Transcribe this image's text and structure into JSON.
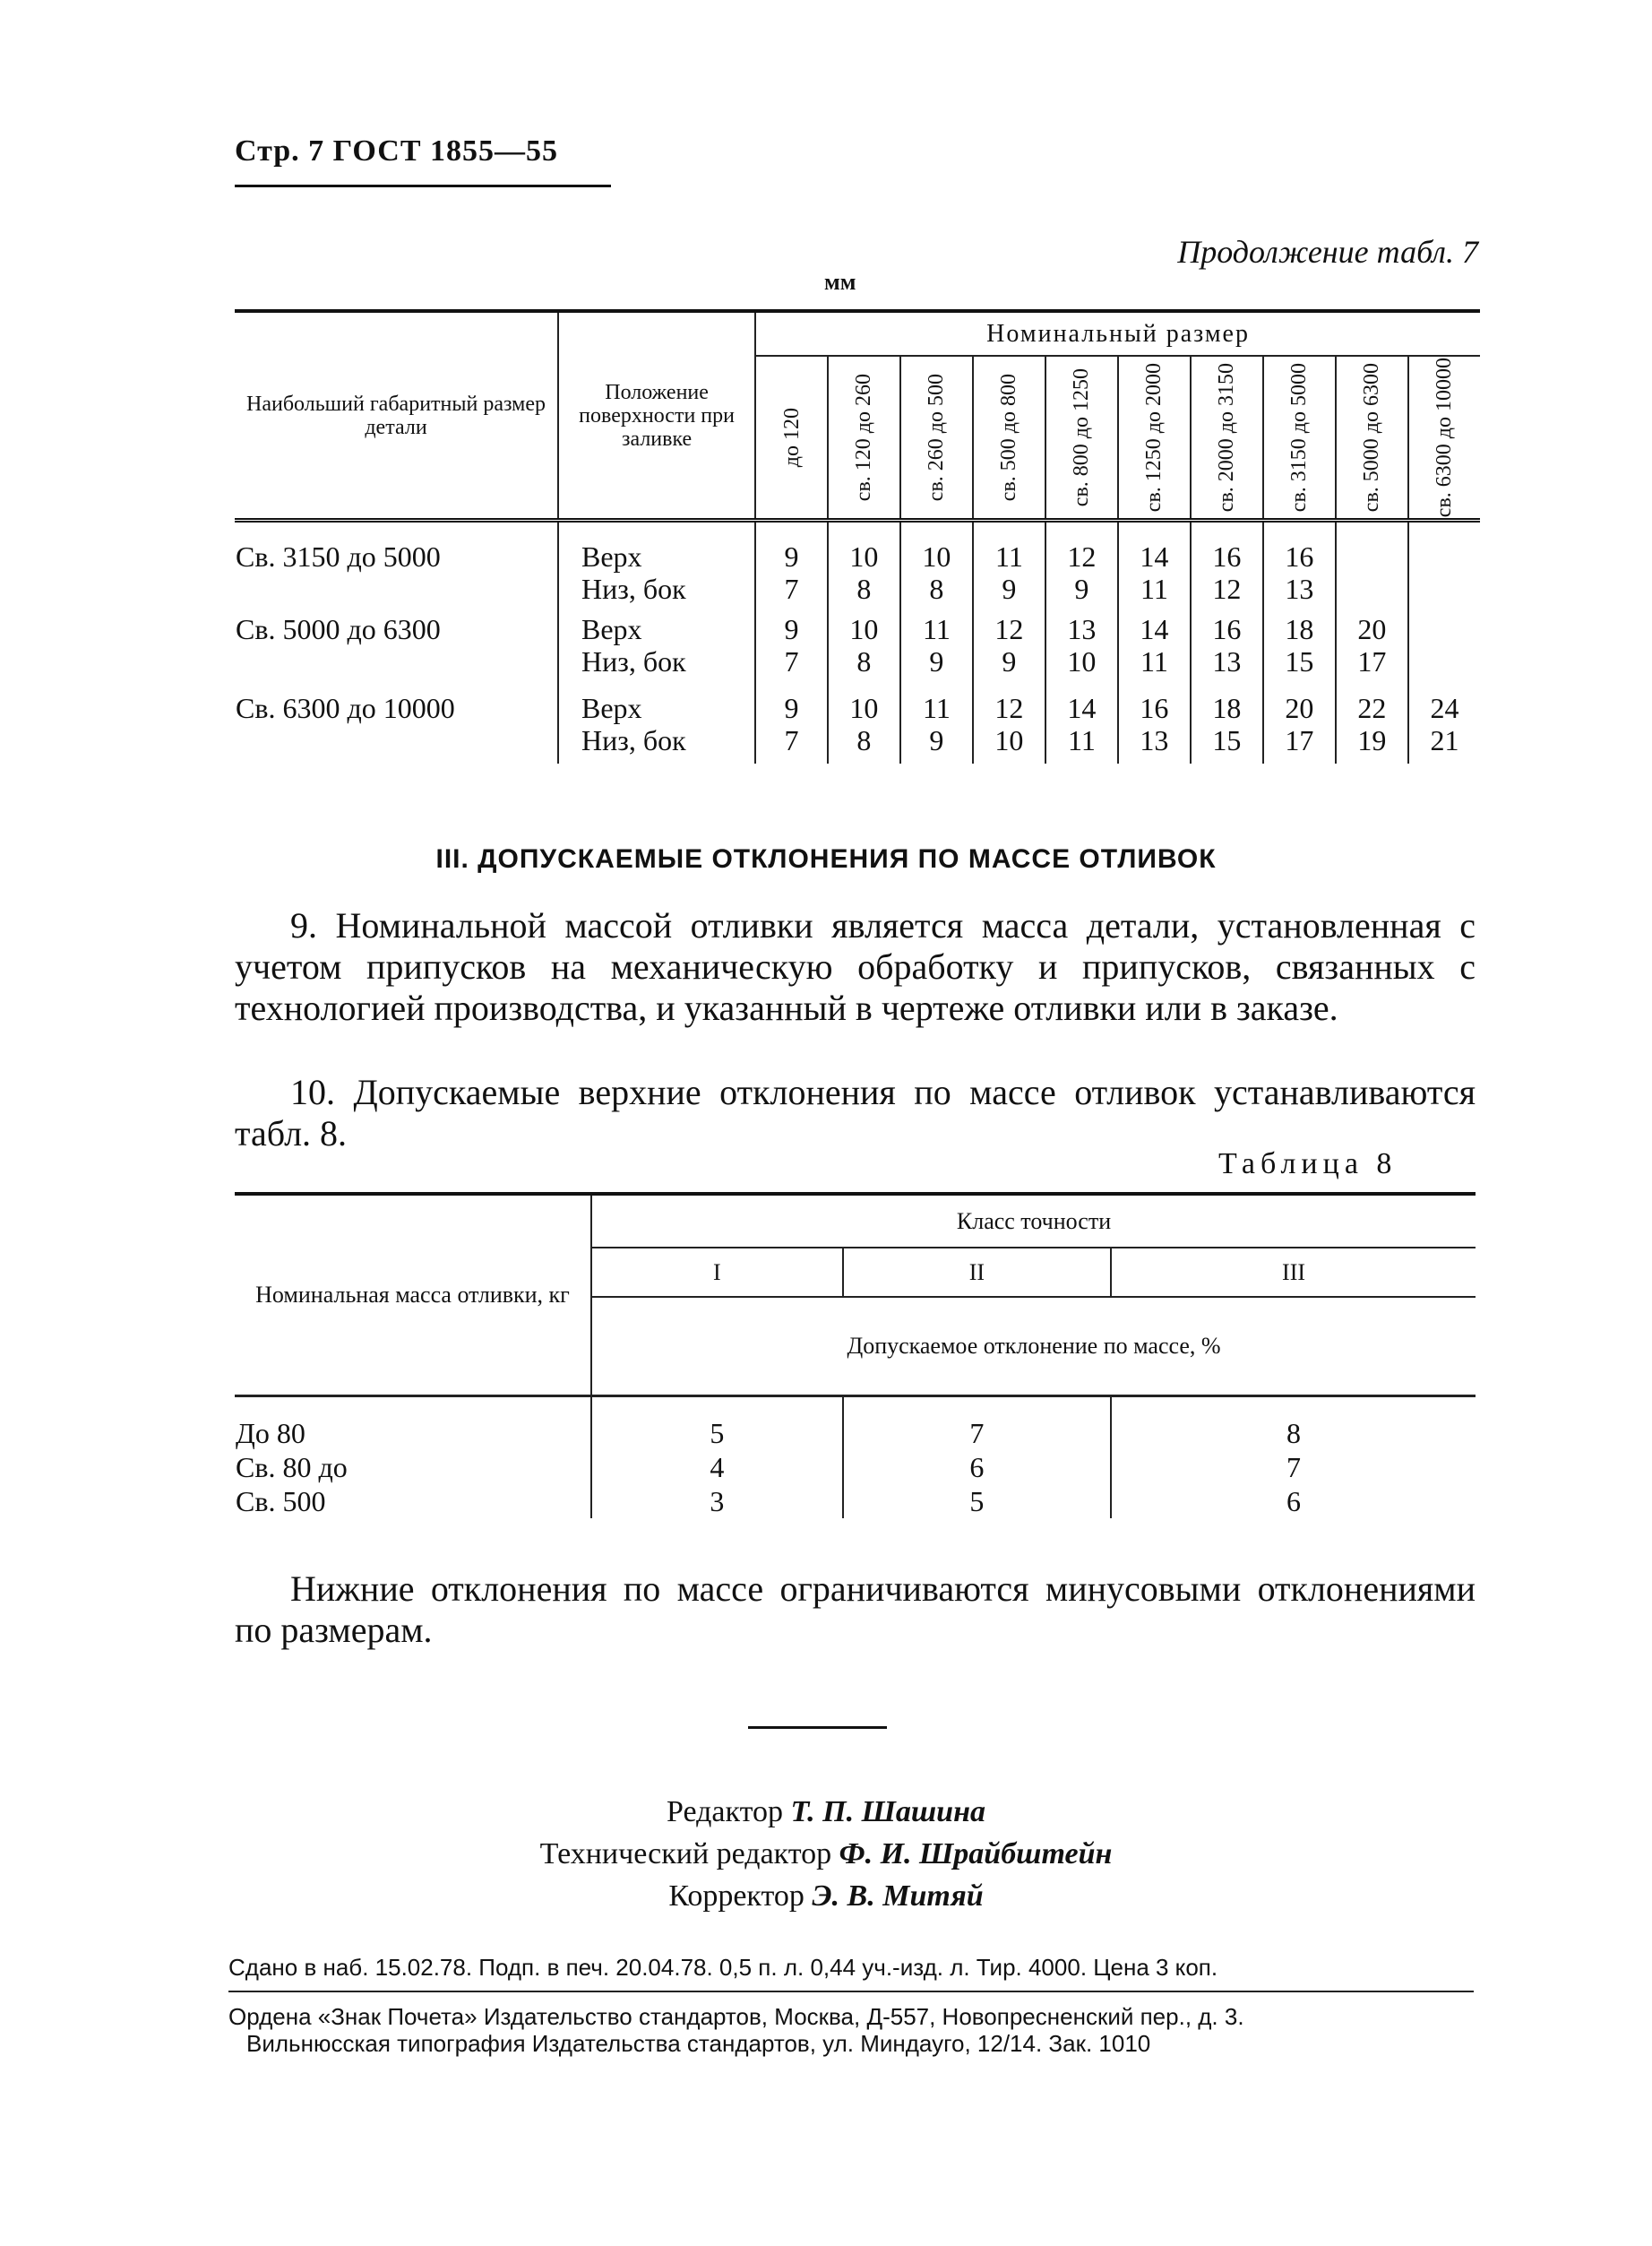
{
  "header": {
    "page_ref": "Стр. 7 ГОСТ 1855—55"
  },
  "continuation": "Продолжение табл. 7",
  "unit": "мм",
  "table7": {
    "col1_header": "Наибольший габаритный размер детали",
    "col2_header": "Положение поверхности при заливке",
    "group_header": "Номинальный размер",
    "size_columns": [
      "до 120",
      "св. 120 до 260",
      "св. 260 до 500",
      "св. 500 до 800",
      "св. 800 до 1250",
      "св. 1250 до 2000",
      "св. 2000 до 3150",
      "св. 3150 до 5000",
      "св. 5000 до 6300",
      "св. 6300 до 10000"
    ],
    "rows": [
      {
        "range": "Св. 3150 до 5000",
        "positions": [
          "Верх",
          "Низ, бок"
        ],
        "top": [
          "9",
          "10",
          "10",
          "11",
          "12",
          "14",
          "16",
          "16",
          "",
          ""
        ],
        "bottom": [
          "7",
          "8",
          "8",
          "9",
          "9",
          "11",
          "12",
          "13",
          "",
          ""
        ]
      },
      {
        "range": "Св. 5000 до 6300",
        "positions": [
          "Верх",
          "Низ, бок"
        ],
        "top": [
          "9",
          "10",
          "11",
          "12",
          "13",
          "14",
          "16",
          "18",
          "20",
          ""
        ],
        "bottom": [
          "7",
          "8",
          "9",
          "9",
          "10",
          "11",
          "13",
          "15",
          "17",
          ""
        ]
      },
      {
        "range": "Св. 6300 до 10000",
        "positions": [
          "Верх",
          "Низ, бок"
        ],
        "top": [
          "9",
          "10",
          "11",
          "12",
          "14",
          "16",
          "18",
          "20",
          "22",
          "24"
        ],
        "bottom": [
          "7",
          "8",
          "9",
          "10",
          "11",
          "13",
          "15",
          "17",
          "19",
          "21"
        ]
      }
    ]
  },
  "section_title": "III. ДОПУСКАЕМЫЕ ОТКЛОНЕНИЯ ПО МАССЕ ОТЛИВОК",
  "para9": "9. Номинальной массой отливки является масса детали, установленная с учетом припусков на механическую обработку и припусков, связанных с технологией производства, и указанный в чертеже отливки или в заказе.",
  "para10": "10. Допускаемые верхние отклонения по массе отливок устанавливаются табл. 8.",
  "table8": {
    "title": "Таблица 8",
    "col1_header": "Номинальная масса отливки, кг",
    "group_header": "Класс точности",
    "classes": [
      "I",
      "II",
      "III"
    ],
    "sub_header": "Допускаемое отклонение по массе, %",
    "rows": [
      {
        "mass": "До 80",
        "values": [
          "5",
          "7",
          "8"
        ]
      },
      {
        "mass": "Св. 80 до",
        "values": [
          "4",
          "6",
          "7"
        ]
      },
      {
        "mass": "Св. 500",
        "values": [
          "3",
          "5",
          "6"
        ]
      }
    ]
  },
  "para_lower": "Нижние отклонения по массе ограничиваются минусовыми отклонениями по размерам.",
  "credits": [
    {
      "role": "Редактор",
      "name": "Т. П. Шашина"
    },
    {
      "role": "Технический редактор",
      "name": "Ф. И. Шрайбштейн"
    },
    {
      "role": "Корректор",
      "name": "Э. В. Митяй"
    }
  ],
  "imprint": [
    "Сдано в наб. 15.02.78. Подп. в печ. 20.04.78. 0,5 п. л. 0,44 уч.-изд. л. Тир. 4000. Цена 3 коп.",
    "Ордена «Знак Почета» Издательство стандартов, Москва, Д-557, Новопресненский пер., д. 3.",
    "Вильнюсская типография Издательства стандартов, ул. Миндауго, 12/14. Зак. 1010"
  ]
}
